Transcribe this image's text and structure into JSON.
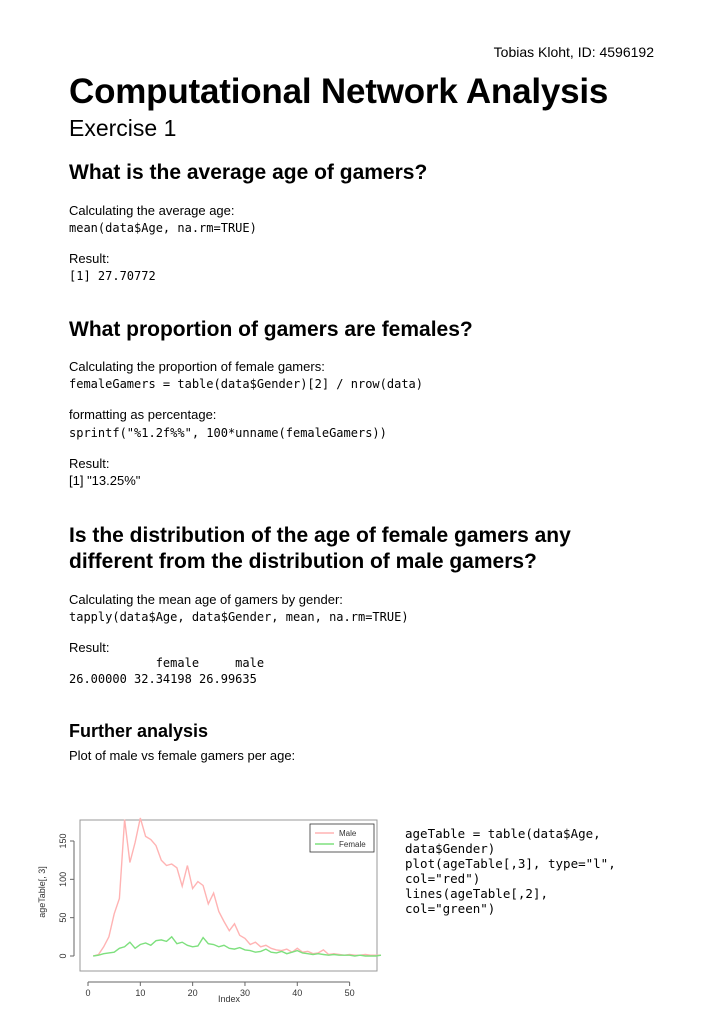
{
  "header": {
    "author": "Tobias Kloht, ID: 4596192"
  },
  "doc": {
    "title": "Computational Network Analysis",
    "subtitle": "Exercise 1"
  },
  "sections": [
    {
      "heading": "What is the average age of gamers?",
      "calc_label": "Calculating the average age:",
      "calc_code": "mean(data$Age, na.rm=TRUE)",
      "result_label": "Result:",
      "result_code": "[1] 27.70772"
    },
    {
      "heading": "What proportion of gamers are females?",
      "calc_label": "Calculating the proportion of female gamers:",
      "calc_code": "femaleGamers = table(data$Gender)[2] / nrow(data)",
      "format_label": "formatting as percentage:",
      "format_code": "sprintf(\"%1.2f%%\", 100*unname(femaleGamers))",
      "result_label": "Result:",
      "result_text": "[1] \"13.25%\""
    },
    {
      "heading_line1": "Is the distribution of the age of female gamers any",
      "heading_line2": "different from the distribution of male gamers?",
      "calc_label": "Calculating the mean age of gamers by gender:",
      "calc_code": "tapply(data$Age, data$Gender, mean, na.rm=TRUE)",
      "result_label": "Result:",
      "result_code": "            female     male\n26.00000 32.34198 26.99635"
    },
    {
      "heading": "Further analysis",
      "plot_label": "Plot of male vs female gamers per age:",
      "plot_code": "ageTable = table(data$Age,\ndata$Gender)\nplot(ageTable[,3], type=\"l\",\ncol=\"red\")\nlines(ageTable[,2],\ncol=\"green\")"
    }
  ],
  "chart_data": {
    "type": "line",
    "xlabel": "Index",
    "ylabel": "ageTable[, 3]",
    "xlim": [
      0,
      56
    ],
    "ylim": [
      0,
      180
    ],
    "xticks": [
      0,
      10,
      20,
      30,
      40,
      50
    ],
    "yticks": [
      0,
      50,
      100,
      150
    ],
    "grid": false,
    "legend_position": "top-right",
    "series": [
      {
        "name": "Male",
        "color": "#ffb3b3",
        "x": [
          1,
          2,
          3,
          4,
          5,
          6,
          7,
          8,
          9,
          10,
          11,
          12,
          13,
          14,
          15,
          16,
          17,
          18,
          19,
          20,
          21,
          22,
          23,
          24,
          25,
          26,
          27,
          28,
          29,
          30,
          31,
          32,
          33,
          34,
          35,
          36,
          37,
          38,
          39,
          40,
          41,
          42,
          43,
          44,
          45,
          46,
          47,
          48,
          49,
          50,
          51,
          52,
          53,
          54,
          55,
          56
        ],
        "values": [
          0,
          2,
          12,
          25,
          55,
          75,
          178,
          122,
          148,
          180,
          156,
          152,
          144,
          125,
          118,
          120,
          115,
          91,
          118,
          88,
          97,
          92,
          68,
          82,
          58,
          45,
          33,
          42,
          27,
          23,
          15,
          18,
          12,
          14,
          10,
          8,
          7,
          9,
          5,
          10,
          5,
          6,
          3,
          4,
          8,
          2,
          3,
          2,
          1,
          2,
          1,
          1,
          2,
          1,
          1,
          1
        ]
      },
      {
        "name": "Female",
        "color": "#7ee07e",
        "x": [
          1,
          2,
          3,
          4,
          5,
          6,
          7,
          8,
          9,
          10,
          11,
          12,
          13,
          14,
          15,
          16,
          17,
          18,
          19,
          20,
          21,
          22,
          23,
          24,
          25,
          26,
          27,
          28,
          29,
          30,
          31,
          32,
          33,
          34,
          35,
          36,
          37,
          38,
          39,
          40,
          41,
          42,
          43,
          44,
          45,
          46,
          47,
          48,
          49,
          50,
          51,
          52,
          53,
          54,
          55,
          56
        ],
        "values": [
          0,
          1,
          3,
          4,
          5,
          10,
          12,
          18,
          10,
          15,
          17,
          14,
          20,
          21,
          19,
          25,
          16,
          18,
          14,
          12,
          13,
          24,
          16,
          15,
          12,
          14,
          10,
          9,
          11,
          8,
          7,
          5,
          6,
          9,
          5,
          4,
          6,
          3,
          5,
          7,
          4,
          3,
          2,
          3,
          2,
          1,
          2,
          1,
          1,
          1,
          0,
          1,
          0,
          0,
          0,
          1
        ]
      }
    ]
  }
}
